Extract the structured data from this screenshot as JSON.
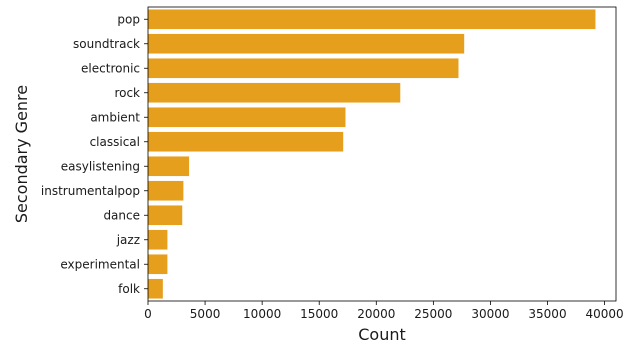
{
  "chart_data": {
    "type": "bar",
    "orientation": "horizontal",
    "title": "",
    "xlabel": "Count",
    "ylabel": "Secondary Genre",
    "categories": [
      "pop",
      "soundtrack",
      "electronic",
      "rock",
      "ambient",
      "classical",
      "easylistening",
      "instrumentalpop",
      "dance",
      "jazz",
      "experimental",
      "folk"
    ],
    "values": [
      39200,
      27700,
      27200,
      22100,
      17300,
      17100,
      3600,
      3100,
      3000,
      1700,
      1700,
      1300
    ],
    "xlim": [
      0,
      41000
    ],
    "xticks": [
      0,
      5000,
      10000,
      15000,
      20000,
      25000,
      30000,
      35000,
      40000
    ],
    "bar_color": "#e69f1c",
    "grid": false,
    "legend": "none"
  }
}
